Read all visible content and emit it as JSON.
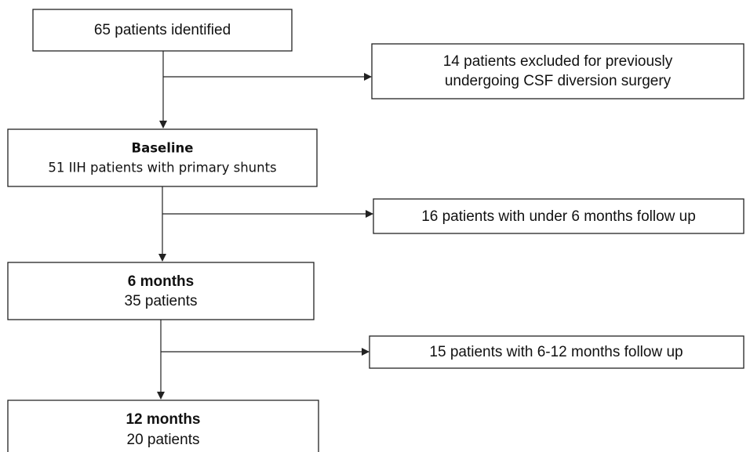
{
  "nodes": [
    {
      "text": "65 patients identified"
    },
    {
      "lines": [
        "14 patients excluded for previously",
        "undergoing CSF diversion surgery"
      ]
    },
    {
      "heading": "Baseline",
      "text": "51 IIH patients with primary shunts"
    },
    {
      "text": "16 patients with under 6 months follow up"
    },
    {
      "heading": "6 months",
      "text": "35 patients"
    },
    {
      "text": "15 patients with 6-12 months follow up"
    },
    {
      "heading": "12 months",
      "text": "20 patients"
    }
  ]
}
